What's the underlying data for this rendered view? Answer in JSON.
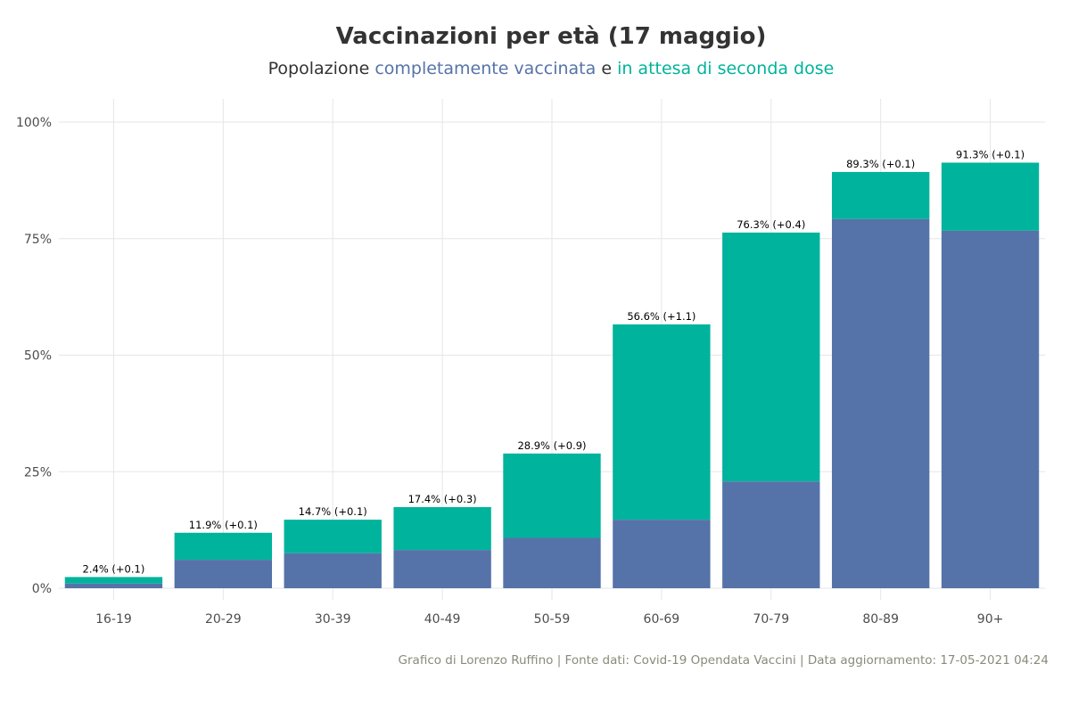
{
  "title": "Vaccinazioni per età (17 maggio)",
  "subtitle": {
    "prefix": "Popolazione ",
    "part1": "completamente vaccinata",
    "middle": " e ",
    "part2": "in attesa di seconda dose"
  },
  "caption": "Grafico di Lorenzo Ruffino | Fonte dati: Covid-19 Opendata Vaccini | Data aggiornamento: 17-05-2021 04:24",
  "colors": {
    "fully_vaccinated": "#5573a8",
    "awaiting_second_dose": "#00b39c",
    "grid": "#e6e6e6",
    "text": "#333333"
  },
  "chart_data": {
    "type": "bar",
    "stacked": true,
    "categories": [
      "16-19",
      "20-29",
      "30-39",
      "40-49",
      "50-59",
      "60-69",
      "70-79",
      "80-89",
      "90+"
    ],
    "series": [
      {
        "name": "completamente vaccinata",
        "values": [
          1.0,
          6.1,
          7.5,
          8.2,
          10.8,
          14.7,
          22.9,
          79.2,
          76.7
        ]
      },
      {
        "name": "in attesa di seconda dose",
        "values": [
          1.4,
          5.8,
          7.2,
          9.2,
          18.1,
          41.9,
          53.4,
          10.1,
          14.6
        ]
      }
    ],
    "data_labels": [
      "2.4% (+0.1)",
      "11.9% (+0.1)",
      "14.7% (+0.1)",
      "17.4% (+0.3)",
      "28.9% (+0.9)",
      "56.6% (+1.1)",
      "76.3% (+0.4)",
      "89.3% (+0.1)",
      "91.3% (+0.1)"
    ],
    "totals": [
      2.4,
      11.9,
      14.7,
      17.4,
      28.9,
      56.6,
      76.3,
      89.3,
      91.3
    ],
    "y_ticks": [
      0,
      25,
      50,
      75,
      100
    ],
    "y_tick_labels": [
      "0%",
      "25%",
      "50%",
      "75%",
      "100%"
    ],
    "ylim": [
      0,
      100
    ],
    "grid": true,
    "legend": "none"
  }
}
